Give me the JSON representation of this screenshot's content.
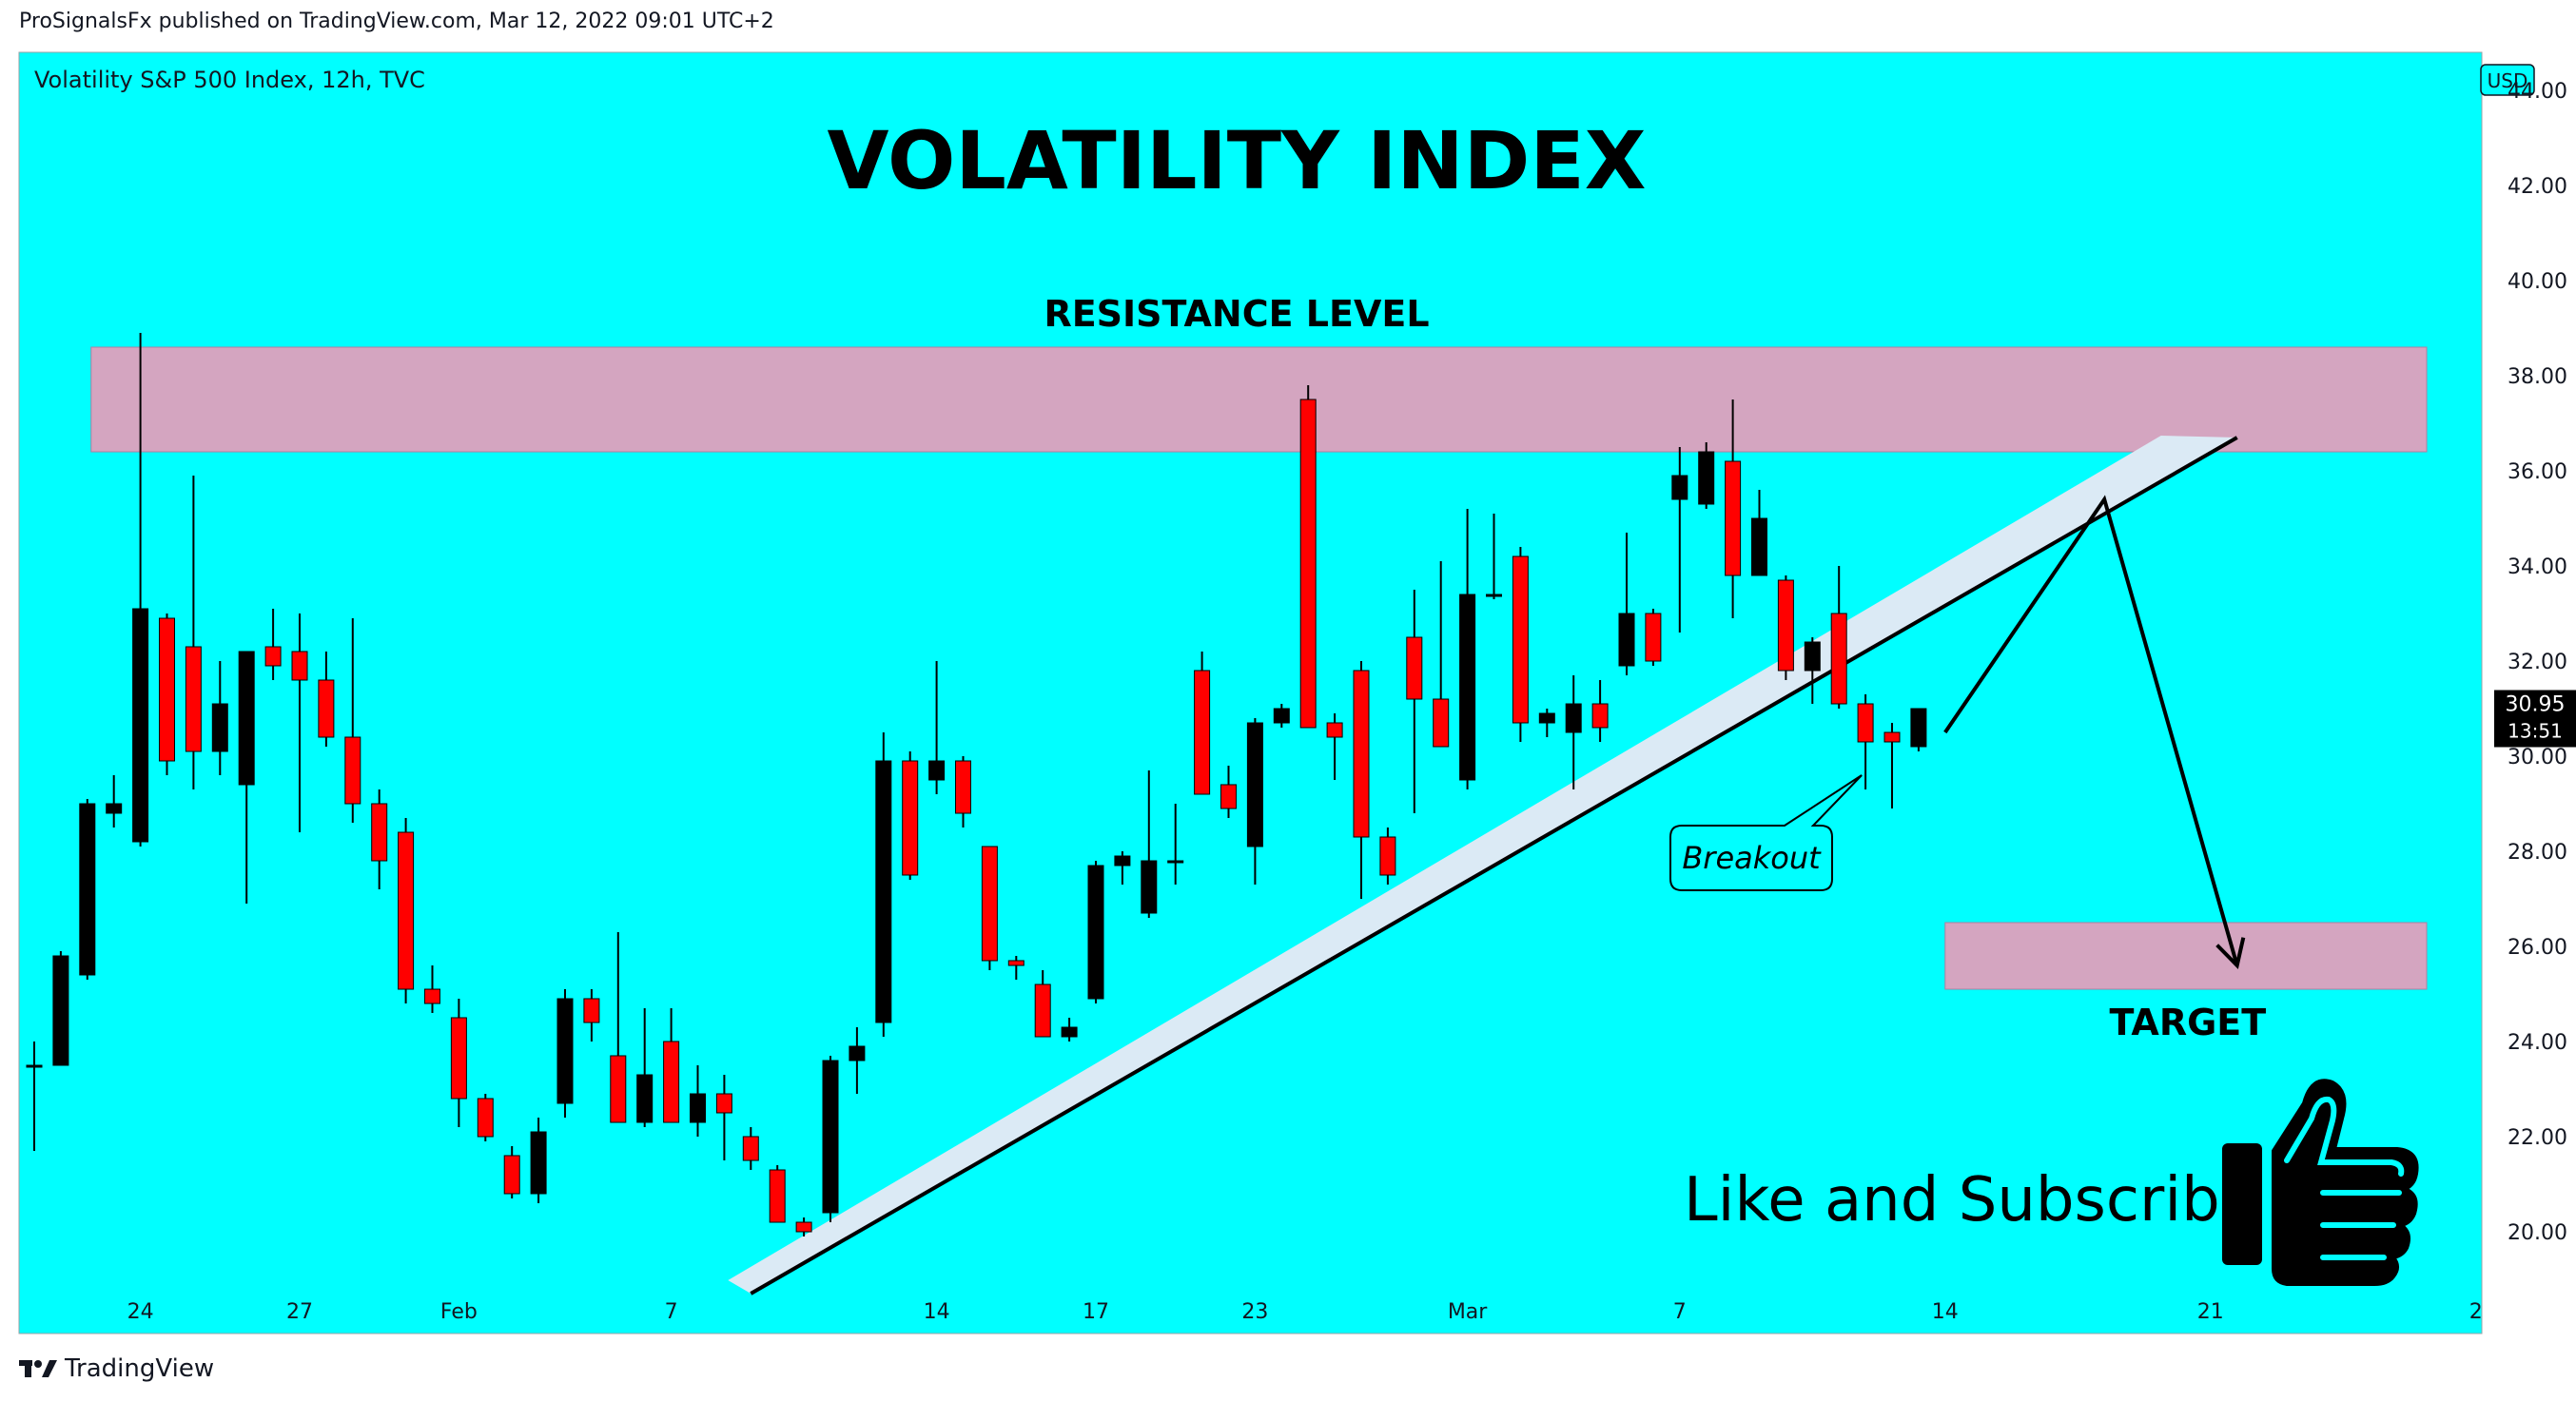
{
  "header": {
    "publish_line": "ProSignalsFx published on TradingView.com, Mar 12, 2022 09:01 UTC+2"
  },
  "footer": {
    "brand": "TradingView",
    "logo_icon": "tradingview-logo-icon"
  },
  "colors": {
    "background": "#00ffff",
    "up_candle": "#000000",
    "down_candle": "#ff0000",
    "zone": "#d4a5c0",
    "trend_band": "#dbeaf5"
  },
  "chart_data": {
    "type": "candlestick",
    "symbol": "Volatility S&P 500 Index, 12h, TVC",
    "currency_badge": "USD",
    "title": "VOLATILITY INDEX",
    "ylim": [
      18.5,
      44.8
    ],
    "y_ticks": [
      "44.00",
      "42.00",
      "40.00",
      "38.00",
      "36.00",
      "34.00",
      "32.00",
      "30.00",
      "28.00",
      "26.00",
      "24.00",
      "22.00",
      "20.00"
    ],
    "x_tick_labels": [
      {
        "label": "24",
        "index": 4
      },
      {
        "label": "27",
        "index": 10
      },
      {
        "label": "Feb",
        "index": 16
      },
      {
        "label": "7",
        "index": 24
      },
      {
        "label": "14",
        "index": 34
      },
      {
        "label": "17",
        "index": 40
      },
      {
        "label": "23",
        "index": 46
      },
      {
        "label": "Mar",
        "index": 54
      },
      {
        "label": "7",
        "index": 62
      },
      {
        "label": "14",
        "index": 72
      },
      {
        "label": "21",
        "index": 82
      },
      {
        "label": "2",
        "index": 92
      }
    ],
    "last_price": "30.95",
    "countdown": "13:51",
    "candles": [
      {
        "o": 23.5,
        "h": 24.0,
        "l": 21.7,
        "c": 23.5
      },
      {
        "o": 23.5,
        "h": 25.9,
        "l": 23.5,
        "c": 25.8
      },
      {
        "o": 25.4,
        "h": 29.1,
        "l": 25.3,
        "c": 29.0
      },
      {
        "o": 28.8,
        "h": 29.6,
        "l": 28.5,
        "c": 29.0
      },
      {
        "o": 28.2,
        "h": 38.9,
        "l": 28.1,
        "c": 33.1
      },
      {
        "o": 32.9,
        "h": 33.0,
        "l": 29.6,
        "c": 29.9
      },
      {
        "o": 32.3,
        "h": 35.9,
        "l": 29.3,
        "c": 30.1
      },
      {
        "o": 30.1,
        "h": 32.0,
        "l": 29.6,
        "c": 31.1
      },
      {
        "o": 29.4,
        "h": 32.2,
        "l": 26.9,
        "c": 32.2
      },
      {
        "o": 32.3,
        "h": 33.1,
        "l": 31.6,
        "c": 31.9
      },
      {
        "o": 32.2,
        "h": 33.0,
        "l": 28.4,
        "c": 31.6
      },
      {
        "o": 31.6,
        "h": 32.2,
        "l": 30.2,
        "c": 30.4
      },
      {
        "o": 30.4,
        "h": 32.9,
        "l": 28.6,
        "c": 29.0
      },
      {
        "o": 29.0,
        "h": 29.3,
        "l": 27.2,
        "c": 27.8
      },
      {
        "o": 28.4,
        "h": 28.7,
        "l": 24.8,
        "c": 25.1
      },
      {
        "o": 25.1,
        "h": 25.6,
        "l": 24.6,
        "c": 24.8
      },
      {
        "o": 24.5,
        "h": 24.9,
        "l": 22.2,
        "c": 22.8
      },
      {
        "o": 22.8,
        "h": 22.9,
        "l": 21.9,
        "c": 22.0
      },
      {
        "o": 21.6,
        "h": 21.8,
        "l": 20.7,
        "c": 20.8
      },
      {
        "o": 20.8,
        "h": 22.4,
        "l": 20.6,
        "c": 22.1
      },
      {
        "o": 22.7,
        "h": 25.1,
        "l": 22.4,
        "c": 24.9
      },
      {
        "o": 24.9,
        "h": 25.1,
        "l": 24.0,
        "c": 24.4
      },
      {
        "o": 23.7,
        "h": 26.3,
        "l": 22.3,
        "c": 22.3
      },
      {
        "o": 22.3,
        "h": 24.7,
        "l": 22.2,
        "c": 23.3
      },
      {
        "o": 24.0,
        "h": 24.7,
        "l": 22.3,
        "c": 22.3
      },
      {
        "o": 22.3,
        "h": 23.5,
        "l": 22.0,
        "c": 22.9
      },
      {
        "o": 22.9,
        "h": 23.3,
        "l": 21.5,
        "c": 22.5
      },
      {
        "o": 22.0,
        "h": 22.2,
        "l": 21.3,
        "c": 21.5
      },
      {
        "o": 21.3,
        "h": 21.4,
        "l": 20.2,
        "c": 20.2
      },
      {
        "o": 20.2,
        "h": 20.3,
        "l": 19.9,
        "c": 20.0
      },
      {
        "o": 20.4,
        "h": 23.7,
        "l": 20.2,
        "c": 23.6
      },
      {
        "o": 23.6,
        "h": 24.3,
        "l": 22.9,
        "c": 23.9
      },
      {
        "o": 24.4,
        "h": 30.5,
        "l": 24.1,
        "c": 29.9
      },
      {
        "o": 29.9,
        "h": 30.1,
        "l": 27.4,
        "c": 27.5
      },
      {
        "o": 29.5,
        "h": 32.0,
        "l": 29.2,
        "c": 29.9
      },
      {
        "o": 29.9,
        "h": 30.0,
        "l": 28.5,
        "c": 28.8
      },
      {
        "o": 28.1,
        "h": 28.1,
        "l": 25.5,
        "c": 25.7
      },
      {
        "o": 25.7,
        "h": 25.8,
        "l": 25.3,
        "c": 25.6
      },
      {
        "o": 25.2,
        "h": 25.5,
        "l": 24.1,
        "c": 24.1
      },
      {
        "o": 24.1,
        "h": 24.5,
        "l": 24.0,
        "c": 24.3
      },
      {
        "o": 24.9,
        "h": 27.8,
        "l": 24.8,
        "c": 27.7
      },
      {
        "o": 27.7,
        "h": 28.0,
        "l": 27.3,
        "c": 27.9
      },
      {
        "o": 26.7,
        "h": 29.7,
        "l": 26.6,
        "c": 27.8
      },
      {
        "o": 27.8,
        "h": 29.0,
        "l": 27.3,
        "c": 27.8
      },
      {
        "o": 31.8,
        "h": 32.2,
        "l": 29.2,
        "c": 29.2
      },
      {
        "o": 29.4,
        "h": 29.8,
        "l": 28.7,
        "c": 28.9
      },
      {
        "o": 28.1,
        "h": 30.8,
        "l": 27.3,
        "c": 30.7
      },
      {
        "o": 30.7,
        "h": 31.1,
        "l": 30.6,
        "c": 31.0
      },
      {
        "o": 37.5,
        "h": 37.8,
        "l": 30.6,
        "c": 30.6
      },
      {
        "o": 30.7,
        "h": 30.9,
        "l": 29.5,
        "c": 30.4
      },
      {
        "o": 31.8,
        "h": 32.0,
        "l": 27.0,
        "c": 28.3
      },
      {
        "o": 28.3,
        "h": 28.5,
        "l": 27.3,
        "c": 27.5
      },
      {
        "o": 32.5,
        "h": 33.5,
        "l": 28.8,
        "c": 31.2
      },
      {
        "o": 31.2,
        "h": 34.1,
        "l": 30.3,
        "c": 30.2
      },
      {
        "o": 29.5,
        "h": 35.2,
        "l": 29.3,
        "c": 33.4
      },
      {
        "o": 33.4,
        "h": 35.1,
        "l": 33.3,
        "c": 33.4
      },
      {
        "o": 34.2,
        "h": 34.4,
        "l": 30.3,
        "c": 30.7
      },
      {
        "o": 30.7,
        "h": 31.0,
        "l": 30.4,
        "c": 30.9
      },
      {
        "o": 30.5,
        "h": 31.7,
        "l": 29.3,
        "c": 31.1
      },
      {
        "o": 31.1,
        "h": 31.6,
        "l": 30.3,
        "c": 30.6
      },
      {
        "o": 31.9,
        "h": 34.7,
        "l": 31.7,
        "c": 33.0
      },
      {
        "o": 33.0,
        "h": 33.1,
        "l": 31.9,
        "c": 32.0
      },
      {
        "o": 35.4,
        "h": 36.5,
        "l": 32.6,
        "c": 35.9
      },
      {
        "o": 35.3,
        "h": 36.6,
        "l": 35.2,
        "c": 36.4
      },
      {
        "o": 36.2,
        "h": 37.5,
        "l": 32.9,
        "c": 33.8
      },
      {
        "o": 33.8,
        "h": 35.6,
        "l": 33.8,
        "c": 35.0
      },
      {
        "o": 33.7,
        "h": 33.8,
        "l": 31.6,
        "c": 31.8
      },
      {
        "o": 31.8,
        "h": 32.5,
        "l": 31.1,
        "c": 32.4
      },
      {
        "o": 33.0,
        "h": 34.0,
        "l": 31.0,
        "c": 31.1
      },
      {
        "o": 31.1,
        "h": 31.3,
        "l": 29.3,
        "c": 30.3
      },
      {
        "o": 30.5,
        "h": 30.7,
        "l": 28.9,
        "c": 30.3
      },
      {
        "o": 30.2,
        "h": 31.0,
        "l": 30.1,
        "c": 31.0
      }
    ],
    "resistance_zone": {
      "label": "RESISTANCE LEVEL",
      "from": 36.4,
      "to": 38.6,
      "start_index": 2,
      "end_index": 90
    },
    "target_zone": {
      "label": "TARGET",
      "from": 25.1,
      "to": 26.5,
      "start_index": 72,
      "end_index": 90
    },
    "trendline": {
      "start_index": 27,
      "start_value": 18.7,
      "end_index": 83,
      "end_value": 36.7
    },
    "projection_path": [
      {
        "index": 72,
        "value": 30.5
      },
      {
        "index": 78,
        "value": 35.4
      },
      {
        "index": 83,
        "value": 25.6
      }
    ],
    "callout": "Breakout",
    "cta": "Like and Subscribe",
    "cta_icon": "thumbs-up-icon"
  }
}
